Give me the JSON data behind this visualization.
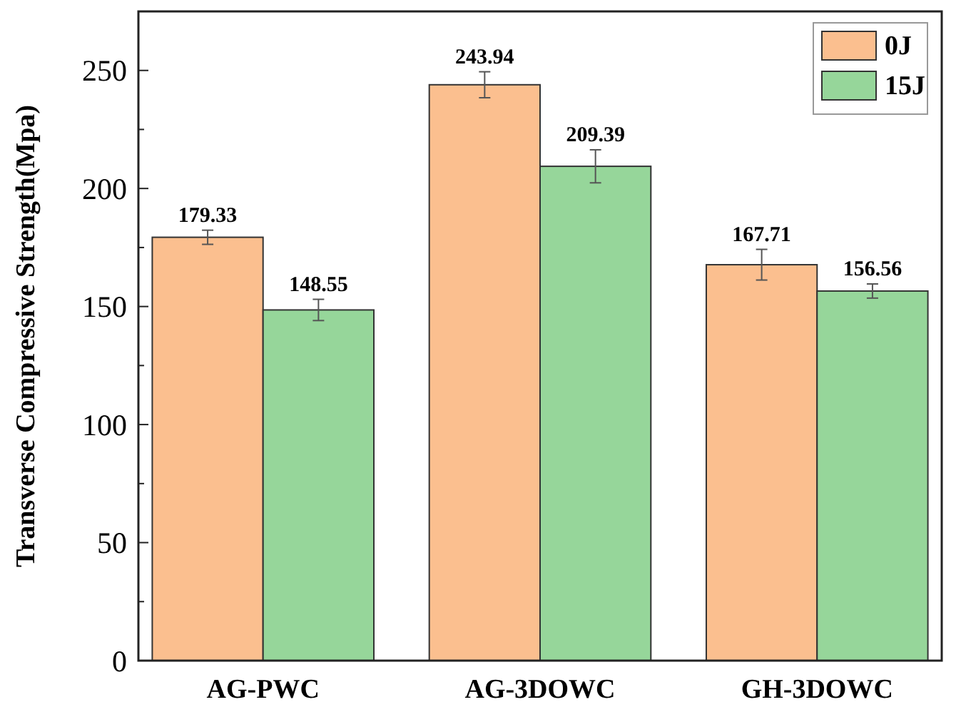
{
  "chart_data": {
    "type": "bar",
    "ylabel": "Transverse Compressive Strength(Mpa)",
    "categories": [
      "AG-PWC",
      "AG-3DOWC",
      "GH-3DOWC"
    ],
    "series": [
      {
        "name": "0J",
        "color": "#fbbf8f",
        "values": [
          179.33,
          243.94,
          167.71
        ],
        "errors": [
          3,
          5.5,
          6.5
        ]
      },
      {
        "name": "15J",
        "color": "#96d69a",
        "values": [
          148.55,
          209.39,
          156.56
        ],
        "errors": [
          4.5,
          7,
          3
        ]
      }
    ],
    "ylim": [
      0,
      275
    ],
    "yticks": [
      0,
      {
        "value": 25,
        "label": null
      },
      50,
      {
        "value": 75,
        "label": null
      },
      100,
      {
        "value": 125,
        "label": null
      },
      150,
      {
        "value": 175,
        "label": null
      },
      200,
      {
        "value": 225,
        "label": null
      },
      250
    ],
    "data_labels": true,
    "legend": "top right",
    "grid": false
  }
}
